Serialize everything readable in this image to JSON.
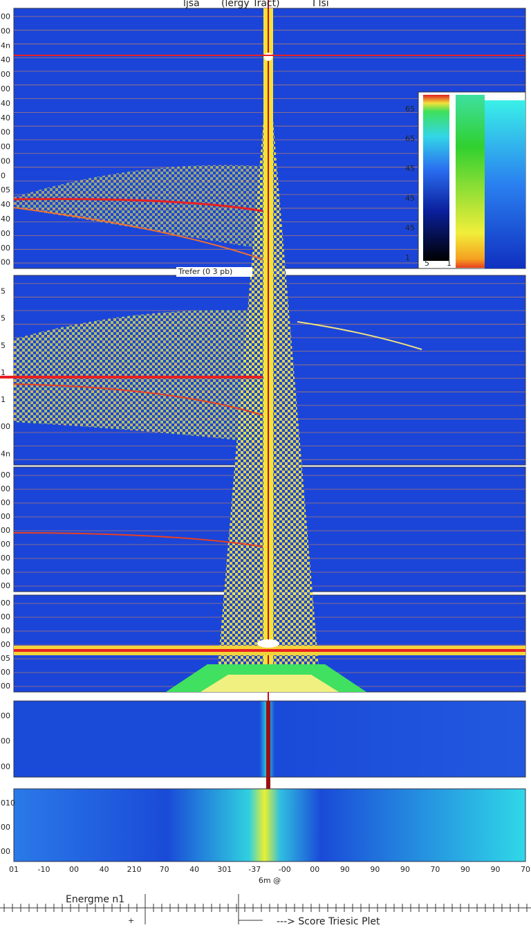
{
  "header": {
    "title_parts": [
      "ljsa",
      "(lergy Tract)",
      "I lsi"
    ]
  },
  "panel2_title": "Trefer (0 3 pb)",
  "left_ticks": {
    "panel1": [
      "00",
      "00",
      "4n",
      "40",
      "00",
      "00",
      "40",
      "40",
      "00",
      "00",
      "00",
      "0",
      "05",
      "40",
      "40",
      "00",
      "00",
      "00"
    ],
    "panel2": [
      "5",
      "5",
      "5",
      "1",
      "1",
      "00",
      "4n"
    ],
    "panel3": [
      "00",
      "00",
      "00",
      "00",
      "00",
      "00",
      "00",
      "00",
      "00"
    ],
    "panel4": [
      "00",
      "00",
      "00",
      "00",
      "05",
      "00",
      "00"
    ],
    "panel5": [
      "00",
      "00",
      "00"
    ],
    "panel6": [
      "010",
      "00",
      "00"
    ]
  },
  "colorbar": {
    "labels": [
      "65",
      "65",
      "45",
      "45",
      "45",
      "1"
    ],
    "bottom_marks": [
      "5",
      "1"
    ]
  },
  "x_axis": {
    "ticks": [
      "01",
      "-10",
      "00",
      "40",
      "210",
      "70",
      "40",
      "301",
      "-37",
      "-00",
      "00",
      "90",
      "90",
      "90",
      "70",
      "90",
      "90",
      "70"
    ],
    "label": "6m @"
  },
  "footer": {
    "left": "Energme n1",
    "marker": "+",
    "right": "---> Score Triesic Plet"
  }
}
